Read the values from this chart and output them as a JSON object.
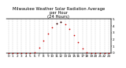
{
  "title": "Milwaukee Weather Solar Radiation Average\nper Hour\n(24 Hours)",
  "hours": [
    0,
    1,
    2,
    3,
    4,
    5,
    6,
    7,
    8,
    9,
    10,
    11,
    12,
    13,
    14,
    15,
    16,
    17,
    18,
    19,
    20,
    21,
    22,
    23
  ],
  "values": [
    0,
    0,
    0,
    0,
    0,
    0,
    15,
    80,
    180,
    290,
    380,
    440,
    460,
    420,
    350,
    260,
    160,
    70,
    10,
    0,
    0,
    0,
    0,
    0
  ],
  "ymax": 500,
  "dot_color": "#cc0000",
  "black_dot_hours": [
    11,
    12
  ],
  "grid_color": "#aaaaaa",
  "bg_color": "#ffffff",
  "title_color": "#000000",
  "title_fontsize": 3.8,
  "tick_fontsize": 3.0,
  "marker_size": 1.5,
  "right_tick_vals": [
    0,
    100,
    200,
    300,
    400,
    500
  ],
  "right_tick_labels": [
    "0",
    "1",
    "2",
    "3",
    "4",
    "5"
  ],
  "xlabel_row1": [
    "0",
    "1",
    "2",
    "3",
    "4",
    "5",
    "6",
    "7",
    "8",
    "9",
    "10",
    "11",
    "12",
    "13",
    "14",
    "15",
    "16",
    "17",
    "18",
    "19",
    "20",
    "21",
    "22",
    "23"
  ],
  "xlabel_row2": [
    "0",
    "5",
    "0",
    "5",
    "0",
    "5",
    "0",
    "5",
    "0",
    "5",
    "0",
    "5",
    "0",
    "5",
    "0",
    "5",
    "0",
    "5",
    "0",
    "5",
    "0",
    "5",
    "0",
    "5"
  ]
}
